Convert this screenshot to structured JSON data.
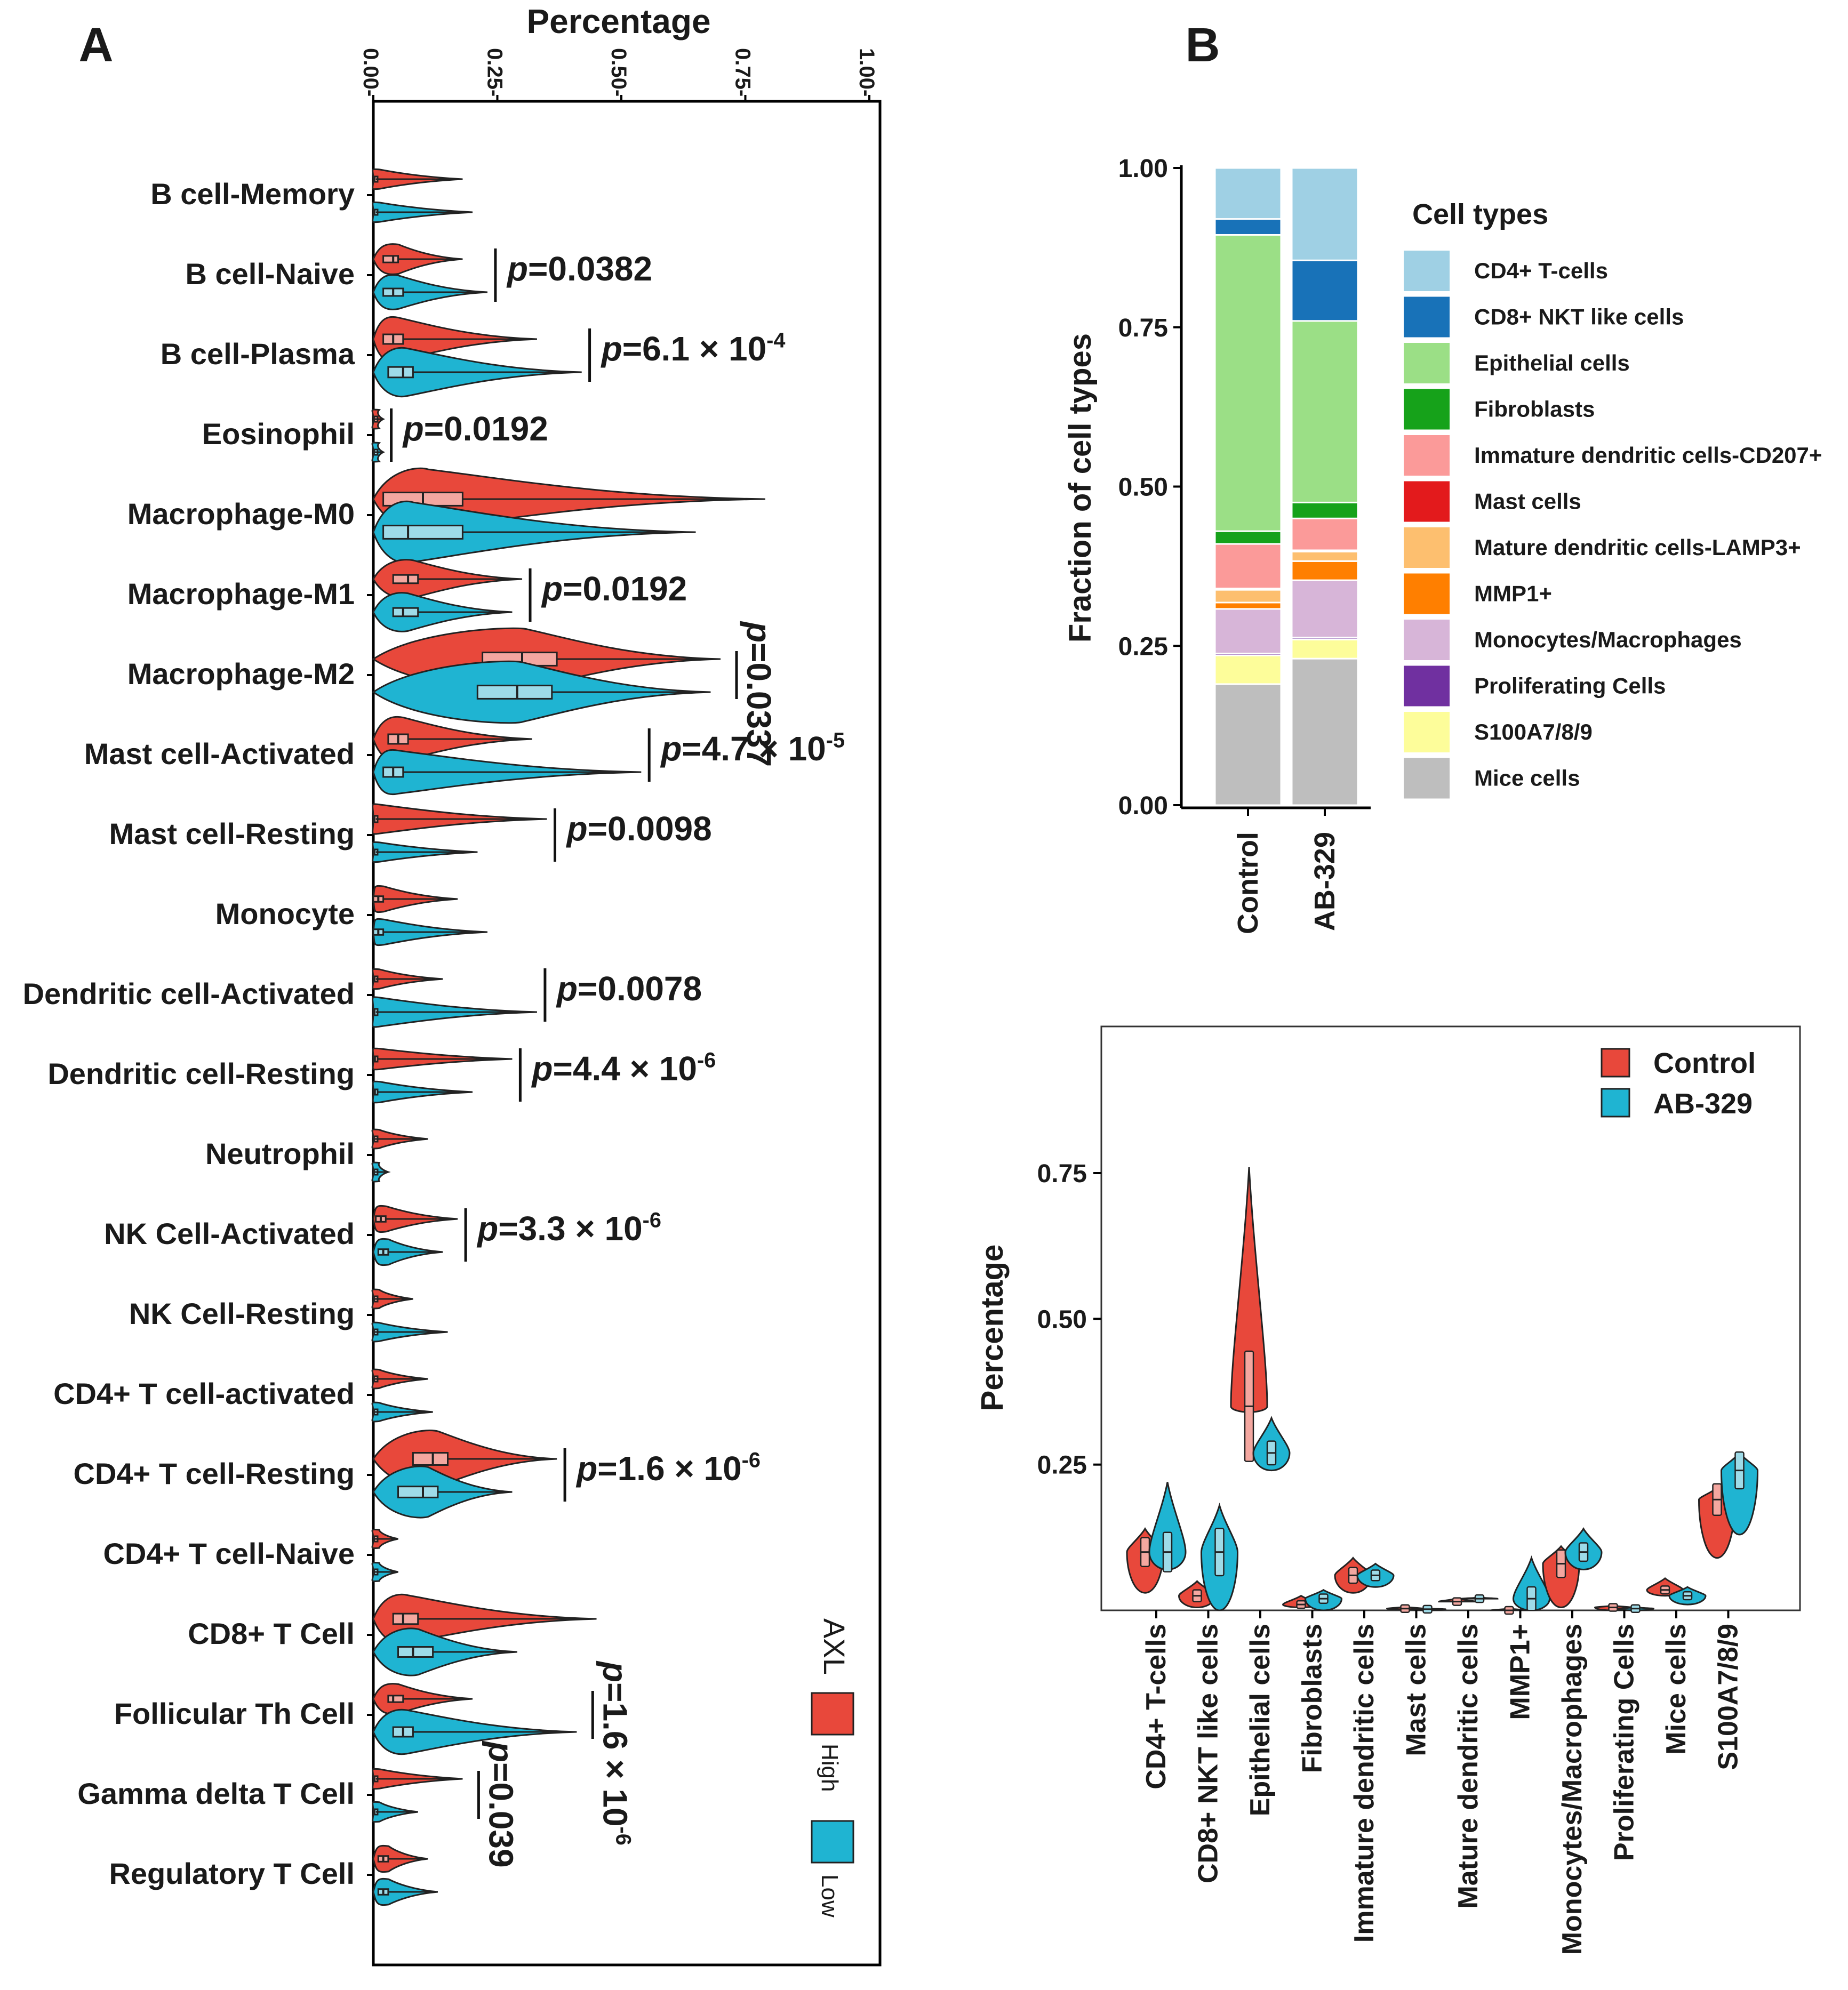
{
  "panel_labels": {
    "a": "A",
    "b": "B"
  },
  "colors": {
    "high": "#e8483b",
    "low": "#1fb4d2",
    "high_box": "#f4a7a0",
    "low_box": "#9edbe8",
    "line": "#222222"
  },
  "chart_data": [
    {
      "id": "A",
      "type": "violin",
      "orientation": "horizontal",
      "title": "Percentage",
      "xlabel": "Percentage",
      "xlim": [
        0,
        1
      ],
      "xticks": [
        "0.00-",
        "0.25-",
        "0.50-",
        "0.75-",
        "1.00-"
      ],
      "xtick_values": [
        0,
        0.25,
        0.5,
        0.75,
        1.0
      ],
      "legend": {
        "title": "AXL",
        "items": [
          "High",
          "Low"
        ],
        "colors": [
          "#e8483b",
          "#1fb4d2"
        ],
        "position": "bottom-right"
      },
      "categories": [
        "B cell-Memory",
        "B cell-Naive",
        "B cell-Plasma",
        "Eosinophil",
        "Macrophage-M0",
        "Macrophage-M1",
        "Macrophage-M2",
        "Mast cell-Activated",
        "Mast cell-Resting",
        "Monocyte",
        "Dendritic cell-Activated",
        "Dendritic cell-Resting",
        "Neutrophil",
        "NK Cell-Activated",
        "NK Cell-Resting",
        "CD4+ T cell-activated",
        "CD4+ T cell-Resting",
        "CD4+ T cell-Naive",
        "CD8+ T Cell",
        "Follicular Th Cell",
        "Gamma delta T Cell",
        "Regulatory T Cell"
      ],
      "series": [
        {
          "name": "High",
          "medians": [
            0.002,
            0.04,
            0.04,
            0.001,
            0.1,
            0.07,
            0.3,
            0.05,
            0.002,
            0.01,
            0.002,
            0.003,
            0.001,
            0.015,
            0.001,
            0.001,
            0.12,
            0.001,
            0.06,
            0.04,
            0.002,
            0.02
          ],
          "q1": [
            0.0,
            0.02,
            0.02,
            0.0,
            0.02,
            0.04,
            0.22,
            0.03,
            0.0,
            0.0,
            0.0,
            0.0,
            0.0,
            0.005,
            0.0,
            0.0,
            0.08,
            0.0,
            0.04,
            0.03,
            0.0,
            0.01
          ],
          "q3": [
            0.005,
            0.05,
            0.06,
            0.003,
            0.18,
            0.09,
            0.37,
            0.07,
            0.005,
            0.02,
            0.005,
            0.008,
            0.003,
            0.025,
            0.003,
            0.003,
            0.15,
            0.002,
            0.09,
            0.06,
            0.005,
            0.03
          ],
          "max": [
            0.18,
            0.18,
            0.33,
            0.02,
            0.79,
            0.3,
            0.7,
            0.32,
            0.35,
            0.17,
            0.14,
            0.28,
            0.11,
            0.17,
            0.08,
            0.11,
            0.37,
            0.05,
            0.45,
            0.2,
            0.18,
            0.11
          ]
        },
        {
          "name": "Low",
          "medians": [
            0.002,
            0.04,
            0.06,
            0.001,
            0.07,
            0.06,
            0.29,
            0.04,
            0.002,
            0.01,
            0.002,
            0.003,
            0.001,
            0.02,
            0.001,
            0.001,
            0.1,
            0.001,
            0.08,
            0.06,
            0.002,
            0.02
          ],
          "q1": [
            0.0,
            0.02,
            0.03,
            0.0,
            0.02,
            0.04,
            0.21,
            0.02,
            0.0,
            0.0,
            0.0,
            0.0,
            0.0,
            0.01,
            0.0,
            0.0,
            0.05,
            0.0,
            0.05,
            0.04,
            0.0,
            0.01
          ],
          "q3": [
            0.005,
            0.06,
            0.08,
            0.003,
            0.18,
            0.09,
            0.36,
            0.06,
            0.005,
            0.02,
            0.005,
            0.008,
            0.003,
            0.03,
            0.003,
            0.003,
            0.13,
            0.002,
            0.12,
            0.08,
            0.005,
            0.03
          ],
          "max": [
            0.2,
            0.23,
            0.42,
            0.02,
            0.65,
            0.28,
            0.68,
            0.54,
            0.21,
            0.23,
            0.33,
            0.2,
            0.03,
            0.14,
            0.15,
            0.12,
            0.28,
            0.05,
            0.29,
            0.41,
            0.09,
            0.13
          ]
        }
      ],
      "annotations": [
        {
          "category": "B cell-Naive",
          "text": "p=0.0382",
          "orient": "h"
        },
        {
          "category": "B cell-Plasma",
          "text": "p=6.1 × 10-4",
          "orient": "h"
        },
        {
          "category": "Eosinophil",
          "text": "p=0.0192",
          "orient": "h"
        },
        {
          "category": "Macrophage-M1",
          "text": "p=0.0192",
          "orient": "h"
        },
        {
          "category": "Macrophage-M2",
          "text": "p=0.0337",
          "orient": "v"
        },
        {
          "category": "Mast cell-Activated",
          "text": "p=4.7 × 10-5",
          "orient": "h"
        },
        {
          "category": "Mast cell-Resting",
          "text": "p=0.0098",
          "orient": "h"
        },
        {
          "category": "Dendritic cell-Activated",
          "text": "p=0.0078",
          "orient": "h"
        },
        {
          "category": "Dendritic cell-Resting",
          "text": "p=4.4 × 10-6",
          "orient": "h"
        },
        {
          "category": "NK Cell-Activated",
          "text": "p=3.3 × 10-6",
          "orient": "h"
        },
        {
          "category": "CD4+ T cell-Resting",
          "text": "p=1.6 × 10-6",
          "orient": "h"
        },
        {
          "category": "Follicular Th Cell",
          "text": "p=1.6 × 10-6",
          "orient": "v"
        },
        {
          "category": "Gamma delta T Cell",
          "text": "p=0.039",
          "orient": "v"
        }
      ]
    },
    {
      "id": "B-top",
      "type": "stacked-bar",
      "ylabel": "Fraction of cell types",
      "ylim": [
        0,
        1
      ],
      "yticks": [
        "0.00",
        "0.25",
        "0.50",
        "0.75",
        "1.00"
      ],
      "ytick_values": [
        0,
        0.25,
        0.5,
        0.75,
        1.0
      ],
      "categories": [
        "Control",
        "AB-329"
      ],
      "legend_title": "Cell types",
      "series": [
        {
          "name": "Mice cells",
          "color": "#bebebe",
          "values": [
            0.19,
            0.23
          ]
        },
        {
          "name": "S100A7/8/9",
          "color": "#fdfd9a",
          "values": [
            0.045,
            0.03
          ]
        },
        {
          "name": "Proliferating Cells",
          "color": "#7030a0",
          "values": [
            0.003,
            0.003
          ]
        },
        {
          "name": "Monocytes/Macrophages",
          "color": "#d7b5d8",
          "values": [
            0.07,
            0.09
          ]
        },
        {
          "name": "MMP1+",
          "color": "#ff7f00",
          "values": [
            0.01,
            0.03
          ]
        },
        {
          "name": "Mature dendritic cells-LAMP3+",
          "color": "#fdbf6f",
          "values": [
            0.02,
            0.015
          ]
        },
        {
          "name": "Mast cells",
          "color": "#e31a1c",
          "values": [
            0.002,
            0.002
          ]
        },
        {
          "name": "Immature dendritic cells-CD207+",
          "color": "#fb9a99",
          "values": [
            0.07,
            0.05
          ]
        },
        {
          "name": "Fibroblasts",
          "color": "#16a21a",
          "values": [
            0.02,
            0.025
          ]
        },
        {
          "name": "Epithelial cells",
          "color": "#9bdf86",
          "values": [
            0.465,
            0.285
          ]
        },
        {
          "name": "CD8+ NKT like cells",
          "color": "#1872b8",
          "values": [
            0.025,
            0.095
          ]
        },
        {
          "name": "CD4+ T-cells",
          "color": "#9fd0e4",
          "values": [
            0.08,
            0.145
          ]
        }
      ],
      "legend_order": [
        "CD4+ T-cells",
        "CD8+ NKT like cells",
        "Epithelial cells",
        "Fibroblasts",
        "Immature dendritic cells-CD207+",
        "Mast cells",
        "Mature dendritic cells-LAMP3+",
        "MMP1+",
        "Monocytes/Macrophages",
        "Proliferating Cells",
        "S100A7/8/9",
        "Mice cells"
      ]
    },
    {
      "id": "B-bottom",
      "type": "violin",
      "orientation": "vertical",
      "ylabel": "Percentage",
      "ylim": [
        0,
        1.0
      ],
      "yticks": [
        "0.25",
        "0.50",
        "0.75"
      ],
      "ytick_values": [
        0.25,
        0.5,
        0.75
      ],
      "categories": [
        "CD4+ T-cells",
        "CD8+ NKT like cells",
        "Epithelial cells",
        "Fibroblasts",
        "Immature dendritic cells",
        "Mast cells",
        "Mature dendritic cells",
        "MMP1+",
        "Monocytes/Macrophages",
        "Proliferating Cells",
        "Mice cells",
        "S100A7/8/9"
      ],
      "legend": {
        "items": [
          "Control",
          "AB-329"
        ],
        "colors": [
          "#e8483b",
          "#1fb4d2"
        ],
        "position": "top-right"
      },
      "series": [
        {
          "name": "Control",
          "min": [
            0.03,
            0.005,
            0.34,
            0.005,
            0.03,
            0.002,
            0.015,
            0.0,
            0.005,
            0.0,
            0.025,
            0.09
          ],
          "median": [
            0.1,
            0.025,
            0.35,
            0.01,
            0.06,
            0.003,
            0.015,
            0.0,
            0.08,
            0.005,
            0.035,
            0.19
          ],
          "max": [
            0.14,
            0.05,
            0.76,
            0.025,
            0.09,
            0.006,
            0.02,
            0.003,
            0.11,
            0.008,
            0.055,
            0.21
          ]
        },
        {
          "name": "AB-329",
          "min": [
            0.07,
            0.0,
            0.24,
            0.0,
            0.04,
            0.0,
            0.02,
            0.0,
            0.07,
            0.0,
            0.01,
            0.13
          ],
          "median": [
            0.1,
            0.1,
            0.27,
            0.02,
            0.06,
            0.002,
            0.02,
            0.02,
            0.1,
            0.003,
            0.025,
            0.24
          ],
          "max": [
            0.22,
            0.18,
            0.33,
            0.035,
            0.08,
            0.003,
            0.022,
            0.09,
            0.14,
            0.005,
            0.04,
            0.27
          ]
        }
      ]
    }
  ]
}
